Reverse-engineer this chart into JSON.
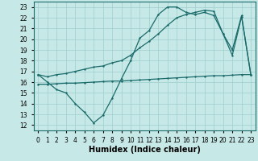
{
  "bg_color": "#c6e8e6",
  "grid_color": "#9ecece",
  "line_color": "#1a6b6b",
  "xlabel": "Humidex (Indice chaleur)",
  "xlabel_fontsize": 7,
  "tick_fontsize": 5.5,
  "xlim": [
    -0.5,
    23.5
  ],
  "ylim": [
    11.5,
    23.5
  ],
  "yticks": [
    12,
    13,
    14,
    15,
    16,
    17,
    18,
    19,
    20,
    21,
    22,
    23
  ],
  "xticks": [
    0,
    1,
    2,
    3,
    4,
    5,
    6,
    7,
    8,
    9,
    10,
    11,
    12,
    13,
    14,
    15,
    16,
    17,
    18,
    19,
    20,
    21,
    22,
    23
  ],
  "line1_x": [
    0,
    1,
    2,
    3,
    4,
    5,
    6,
    7,
    8,
    9,
    10,
    11,
    12,
    13,
    14,
    15,
    16,
    17,
    18,
    19,
    20,
    21,
    22,
    23
  ],
  "line1_y": [
    16.7,
    16.0,
    15.3,
    15.0,
    14.0,
    13.2,
    12.2,
    12.9,
    14.5,
    16.3,
    18.0,
    20.1,
    20.8,
    22.3,
    23.0,
    23.0,
    22.5,
    22.3,
    22.5,
    22.2,
    20.5,
    18.5,
    22.1,
    16.7
  ],
  "line2_x": [
    0,
    1,
    2,
    3,
    4,
    5,
    6,
    7,
    8,
    9,
    10,
    11,
    12,
    13,
    14,
    15,
    16,
    17,
    18,
    19,
    20,
    21,
    22,
    23
  ],
  "line2_y": [
    16.7,
    16.5,
    16.7,
    16.8,
    17.0,
    17.2,
    17.4,
    17.5,
    17.8,
    18.0,
    18.5,
    19.2,
    19.8,
    20.5,
    21.3,
    22.0,
    22.3,
    22.5,
    22.7,
    22.6,
    20.5,
    19.0,
    22.2,
    16.7
  ],
  "line3_x": [
    0,
    1,
    2,
    3,
    4,
    5,
    6,
    7,
    8,
    9,
    10,
    11,
    12,
    13,
    14,
    15,
    16,
    17,
    18,
    19,
    20,
    21,
    22,
    23
  ],
  "line3_y": [
    15.8,
    15.8,
    15.85,
    15.9,
    15.9,
    15.95,
    16.0,
    16.05,
    16.1,
    16.1,
    16.15,
    16.2,
    16.25,
    16.3,
    16.35,
    16.4,
    16.45,
    16.5,
    16.55,
    16.6,
    16.6,
    16.65,
    16.7,
    16.7
  ]
}
